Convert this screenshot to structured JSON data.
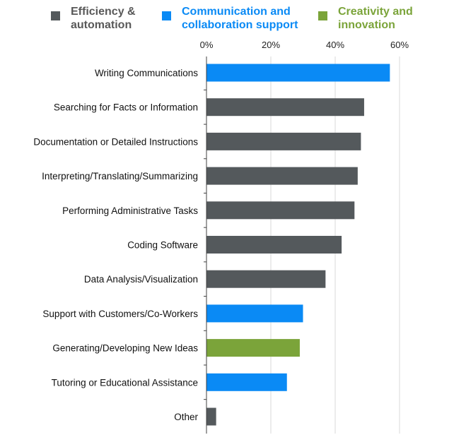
{
  "legend": {
    "items": [
      {
        "key": "efficiency",
        "line1": "Efficiency &",
        "line2": "automation",
        "color": "#54595C",
        "text_color": "#595959"
      },
      {
        "key": "communication",
        "line1": "Communication and",
        "line2": "collaboration support",
        "color": "#0A8AF5",
        "text_color": "#0A8AF5"
      },
      {
        "key": "creativity",
        "line1": "Creativity and",
        "line2": "innovation",
        "color": "#7BA43A",
        "text_color": "#7BA43A"
      }
    ]
  },
  "chart_data": {
    "type": "bar",
    "orientation": "horizontal",
    "title": "",
    "xlabel": "",
    "ylabel": "",
    "xlim": [
      0,
      60
    ],
    "x_ticks": [
      0,
      20,
      40,
      60
    ],
    "x_tick_labels": [
      "0%",
      "20%",
      "40%",
      "60%"
    ],
    "x_axis_position": "top",
    "grid": true,
    "legend_position": "top",
    "categories": [
      "Writing Communications",
      "Searching for Facts or Information",
      "Documentation or Detailed Instructions",
      "Interpreting/Translating/Summarizing",
      "Performing Administrative Tasks",
      "Coding Software",
      "Data Analysis/Visualization",
      "Support with Customers/Co-Workers",
      "Generating/Developing New Ideas",
      "Tutoring or Educational Assistance",
      "Other"
    ],
    "values": [
      57,
      49,
      48,
      47,
      46,
      42,
      37,
      30,
      29,
      25,
      3
    ],
    "groups": [
      "communication",
      "efficiency",
      "efficiency",
      "efficiency",
      "efficiency",
      "efficiency",
      "efficiency",
      "communication",
      "creativity",
      "communication",
      "efficiency"
    ]
  }
}
